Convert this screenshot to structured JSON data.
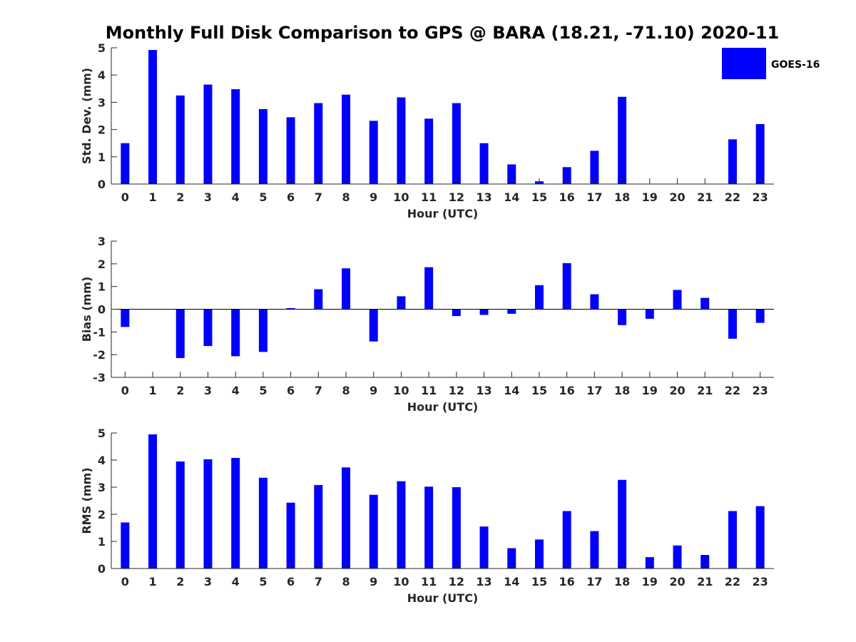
{
  "title": "Monthly Full Disk Comparison to GPS @ BARA (18.21, -71.10) 2020-11",
  "legend": {
    "label": "GOES-16"
  },
  "colors": {
    "bar": "#0000ff",
    "axis": "#262626",
    "text": "#262626"
  },
  "chart_data": [
    {
      "type": "bar",
      "title": "",
      "xlabel": "Hour (UTC)",
      "ylabel": "Std. Dev. (mm)",
      "ylim": [
        0,
        5
      ],
      "yticks": [
        "0",
        "1",
        "2",
        "3",
        "4",
        "5"
      ],
      "categories": [
        "0",
        "1",
        "2",
        "3",
        "4",
        "5",
        "6",
        "7",
        "8",
        "9",
        "10",
        "11",
        "12",
        "13",
        "14",
        "15",
        "16",
        "17",
        "18",
        "19",
        "20",
        "21",
        "22",
        "23"
      ],
      "series": [
        {
          "name": "GOES-16",
          "values": [
            1.5,
            4.92,
            3.25,
            3.65,
            3.48,
            2.75,
            2.45,
            2.97,
            3.28,
            2.32,
            3.18,
            2.4,
            2.97,
            1.5,
            0.72,
            0.1,
            0.62,
            1.22,
            3.2,
            0,
            0,
            0,
            1.64,
            2.2
          ]
        }
      ]
    },
    {
      "type": "bar",
      "title": "",
      "xlabel": "Hour (UTC)",
      "ylabel": "Bias (mm)",
      "ylim": [
        -3,
        3
      ],
      "yticks": [
        "-3",
        "-2",
        "-1",
        "0",
        "1",
        "2",
        "3"
      ],
      "categories": [
        "0",
        "1",
        "2",
        "3",
        "4",
        "5",
        "6",
        "7",
        "8",
        "9",
        "10",
        "11",
        "12",
        "13",
        "14",
        "15",
        "16",
        "17",
        "18",
        "19",
        "20",
        "21",
        "22",
        "23"
      ],
      "series": [
        {
          "name": "GOES-16",
          "values": [
            -0.78,
            0,
            -2.15,
            -1.62,
            -2.07,
            -1.88,
            0.05,
            0.88,
            1.8,
            -1.42,
            0.57,
            1.85,
            -0.3,
            -0.25,
            -0.2,
            1.06,
            2.03,
            0.66,
            -0.7,
            -0.42,
            0.85,
            0.5,
            -1.3,
            -0.6
          ]
        }
      ]
    },
    {
      "type": "bar",
      "title": "",
      "xlabel": "Hour (UTC)",
      "ylabel": "RMS (mm)",
      "ylim": [
        0,
        5
      ],
      "yticks": [
        "0",
        "1",
        "2",
        "3",
        "4",
        "5"
      ],
      "categories": [
        "0",
        "1",
        "2",
        "3",
        "4",
        "5",
        "6",
        "7",
        "8",
        "9",
        "10",
        "11",
        "12",
        "13",
        "14",
        "15",
        "16",
        "17",
        "18",
        "19",
        "20",
        "21",
        "22",
        "23"
      ],
      "series": [
        {
          "name": "GOES-16",
          "values": [
            1.7,
            4.95,
            3.95,
            4.03,
            4.08,
            3.35,
            2.43,
            3.08,
            3.73,
            2.72,
            3.22,
            3.02,
            3.0,
            1.55,
            0.75,
            1.07,
            2.12,
            1.38,
            3.27,
            0.42,
            0.85,
            0.5,
            2.12,
            2.3
          ]
        }
      ]
    }
  ]
}
